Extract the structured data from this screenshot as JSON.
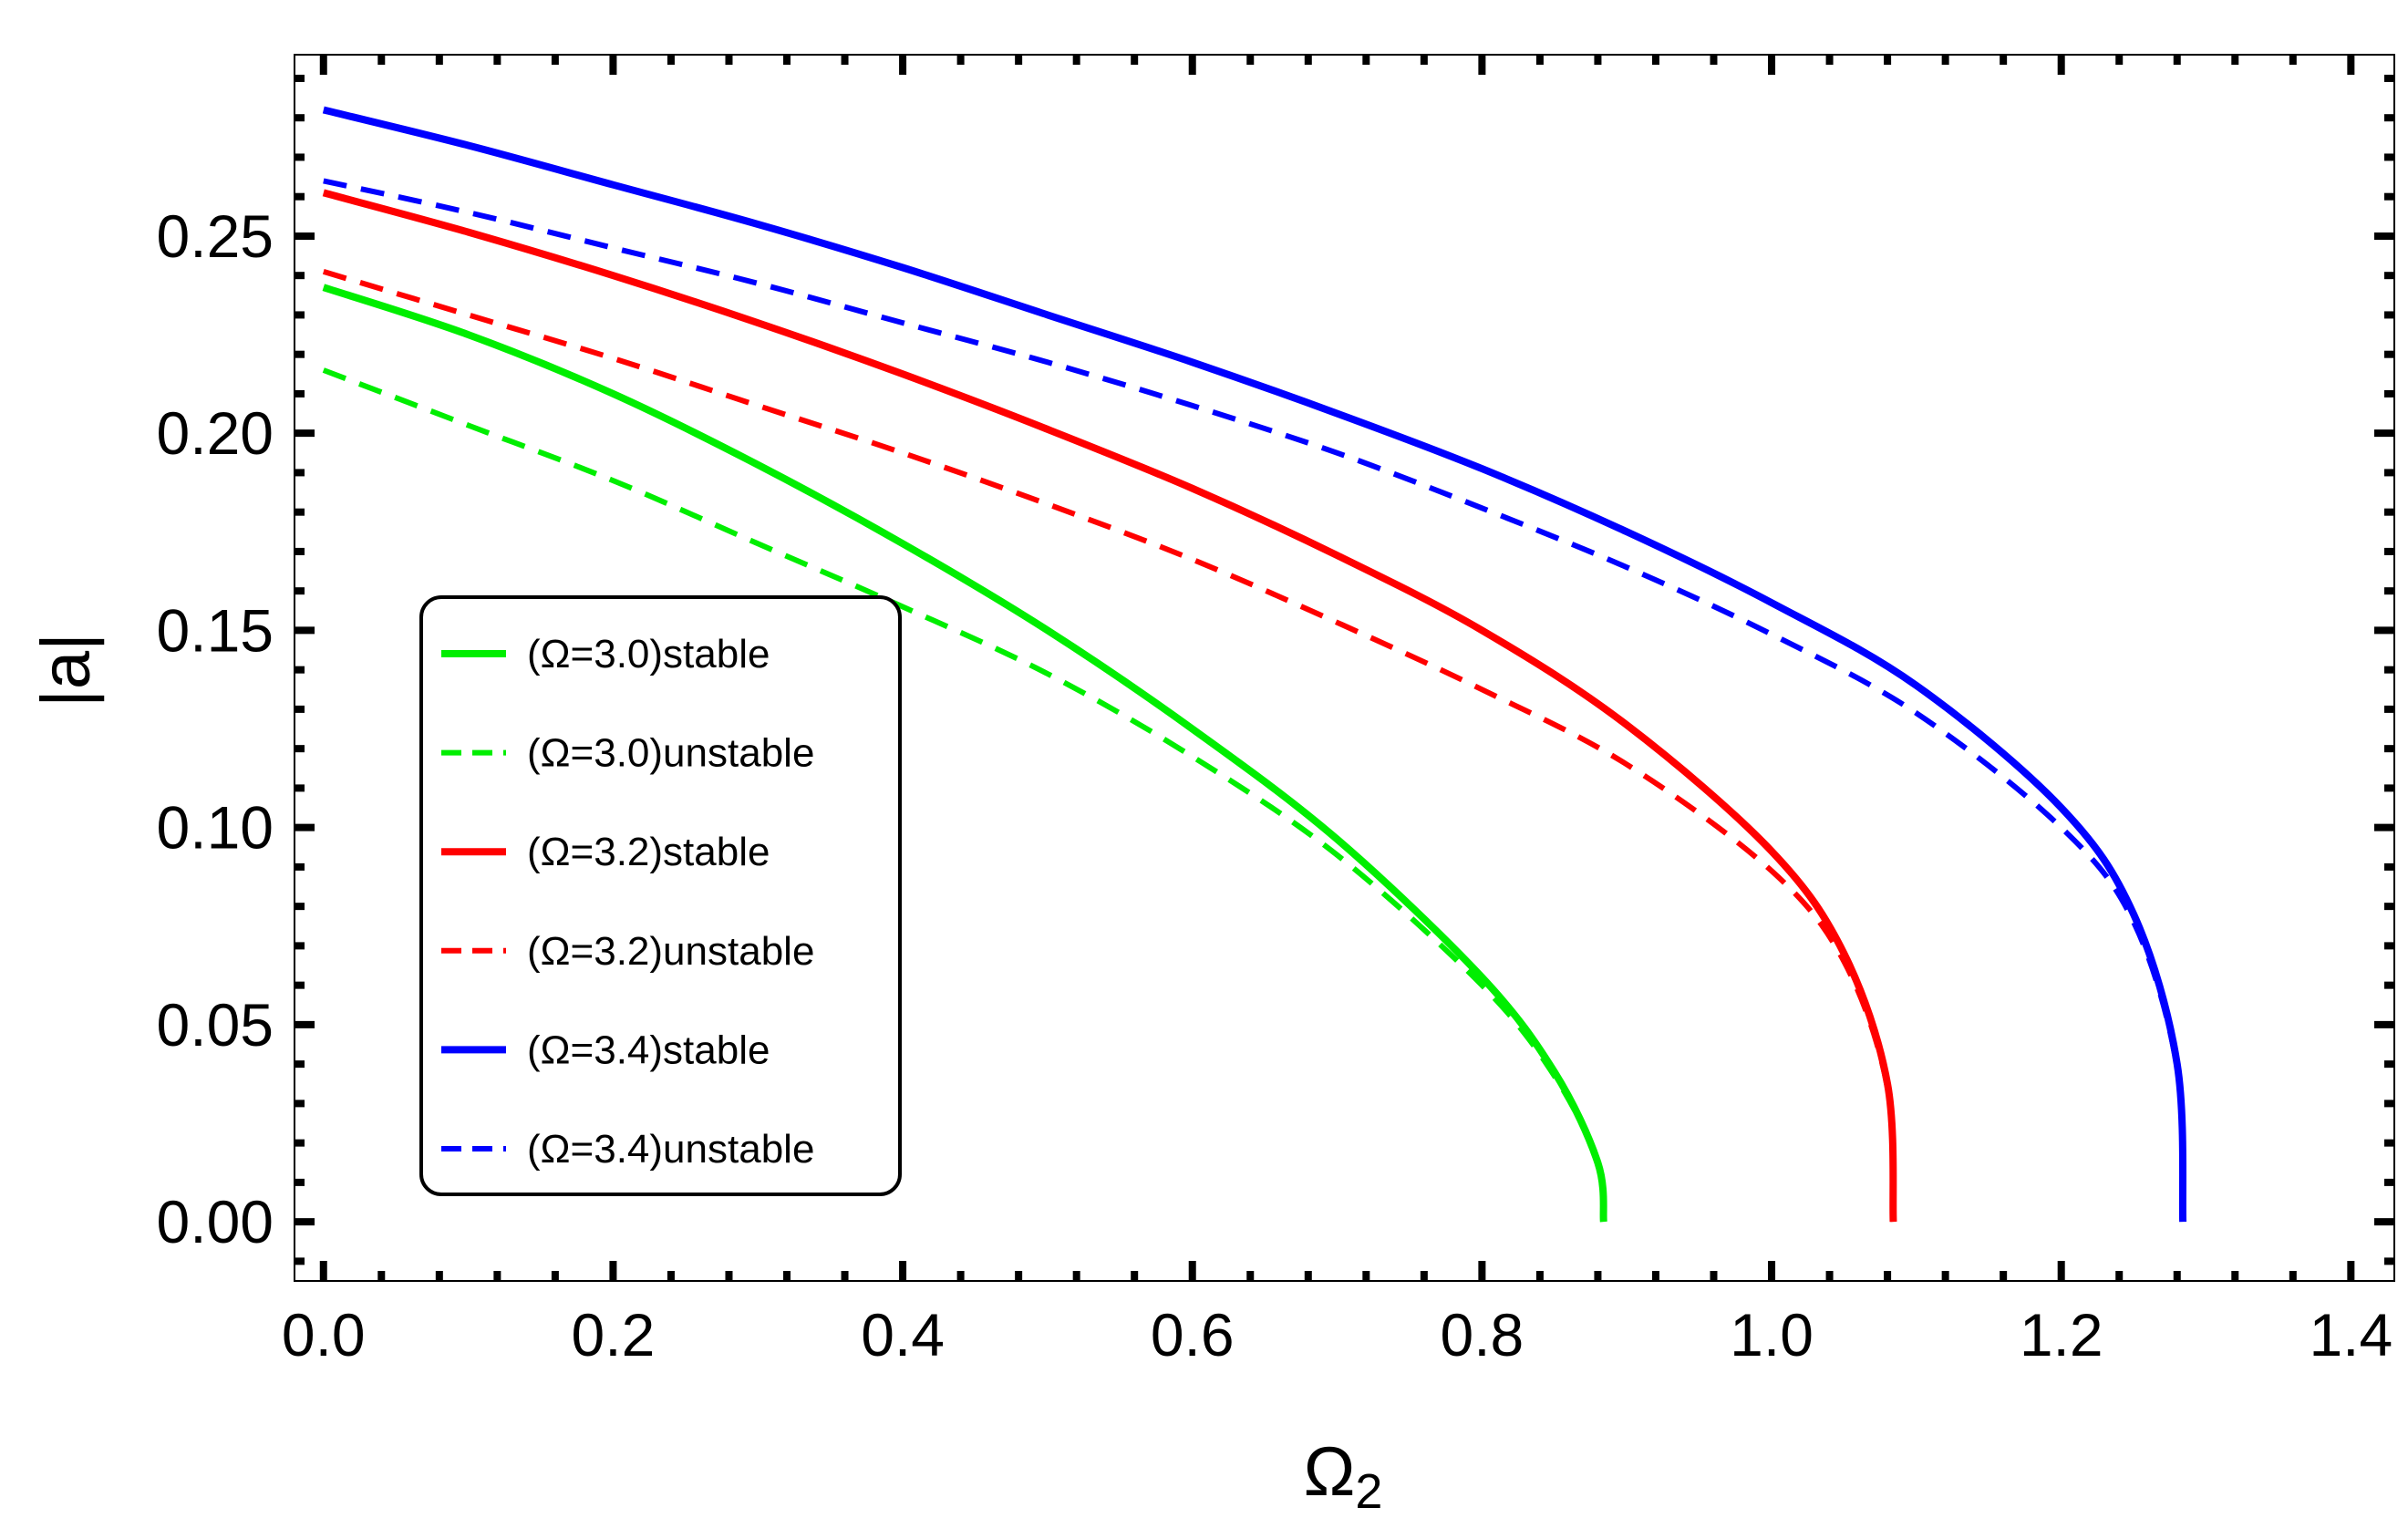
{
  "chart_data": {
    "type": "line",
    "title": "",
    "xlabel": "Ω",
    "xlabel_subscript": "2",
    "ylabel": "|a|",
    "xlim": [
      -0.02,
      1.43
    ],
    "ylim": [
      -0.015,
      0.296
    ],
    "x_ticks": [
      {
        "value": 0.0,
        "label": "0.0"
      },
      {
        "value": 0.2,
        "label": "0.2"
      },
      {
        "value": 0.4,
        "label": "0.4"
      },
      {
        "value": 0.6,
        "label": "0.6"
      },
      {
        "value": 0.8,
        "label": "0.8"
      },
      {
        "value": 1.0,
        "label": "1.0"
      },
      {
        "value": 1.2,
        "label": "1.2"
      },
      {
        "value": 1.4,
        "label": "1.4"
      }
    ],
    "y_ticks": [
      {
        "value": 0.0,
        "label": "0.00"
      },
      {
        "value": 0.05,
        "label": "0.05"
      },
      {
        "value": 0.1,
        "label": "0.10"
      },
      {
        "value": 0.15,
        "label": "0.15"
      },
      {
        "value": 0.2,
        "label": "0.20"
      },
      {
        "value": 0.25,
        "label": "0.25"
      }
    ],
    "legend_position": "left-middle",
    "series": [
      {
        "name": "(Ω=3.0)stable",
        "color": "#00ee00",
        "dashed": false,
        "x": [
          0,
          0.1,
          0.2,
          0.3,
          0.4,
          0.5,
          0.6,
          0.7,
          0.8,
          0.85,
          0.88,
          0.884
        ],
        "y": [
          0.237,
          0.225,
          0.21,
          0.192,
          0.172,
          0.15,
          0.125,
          0.097,
          0.062,
          0.038,
          0.015,
          0.0
        ]
      },
      {
        "name": "(Ω=3.0)unstable",
        "color": "#00ee00",
        "dashed": true,
        "x": [
          0,
          0.1,
          0.2,
          0.3,
          0.4,
          0.5,
          0.6,
          0.7,
          0.8,
          0.85,
          0.88,
          0.884
        ],
        "y": [
          0.216,
          0.202,
          0.188,
          0.172,
          0.156,
          0.139,
          0.118,
          0.093,
          0.06,
          0.037,
          0.015,
          0.0
        ]
      },
      {
        "name": "(Ω=3.2)stable",
        "color": "#ff0000",
        "dashed": false,
        "x": [
          0,
          0.1,
          0.2,
          0.3,
          0.4,
          0.5,
          0.6,
          0.7,
          0.8,
          0.9,
          1.0,
          1.05,
          1.08,
          1.084
        ],
        "y": [
          0.261,
          0.251,
          0.24,
          0.228,
          0.215,
          0.201,
          0.186,
          0.169,
          0.15,
          0.126,
          0.094,
          0.068,
          0.035,
          0.0
        ]
      },
      {
        "name": "(Ω=3.2)unstable",
        "color": "#ff0000",
        "dashed": true,
        "x": [
          0,
          0.1,
          0.2,
          0.3,
          0.4,
          0.5,
          0.6,
          0.7,
          0.8,
          0.9,
          1.0,
          1.05,
          1.08,
          1.084
        ],
        "y": [
          0.241,
          0.23,
          0.219,
          0.207,
          0.195,
          0.182,
          0.168,
          0.152,
          0.135,
          0.116,
          0.089,
          0.066,
          0.034,
          0.0
        ]
      },
      {
        "name": "(Ω=3.4)stable",
        "color": "#0000ff",
        "dashed": false,
        "x": [
          0,
          0.1,
          0.2,
          0.3,
          0.4,
          0.5,
          0.6,
          0.7,
          0.8,
          0.9,
          1.0,
          1.1,
          1.2,
          1.25,
          1.28,
          1.284
        ],
        "y": [
          0.282,
          0.273,
          0.263,
          0.253,
          0.242,
          0.23,
          0.218,
          0.205,
          0.191,
          0.175,
          0.157,
          0.136,
          0.105,
          0.078,
          0.04,
          0.0
        ]
      },
      {
        "name": "(Ω=3.4)unstable",
        "color": "#0000ff",
        "dashed": true,
        "x": [
          0,
          0.1,
          0.2,
          0.3,
          0.4,
          0.5,
          0.6,
          0.7,
          0.8,
          0.9,
          1.0,
          1.1,
          1.2,
          1.25,
          1.28,
          1.284
        ],
        "y": [
          0.264,
          0.256,
          0.247,
          0.238,
          0.228,
          0.218,
          0.207,
          0.195,
          0.181,
          0.166,
          0.149,
          0.129,
          0.1,
          0.076,
          0.039,
          0.0
        ]
      }
    ]
  }
}
